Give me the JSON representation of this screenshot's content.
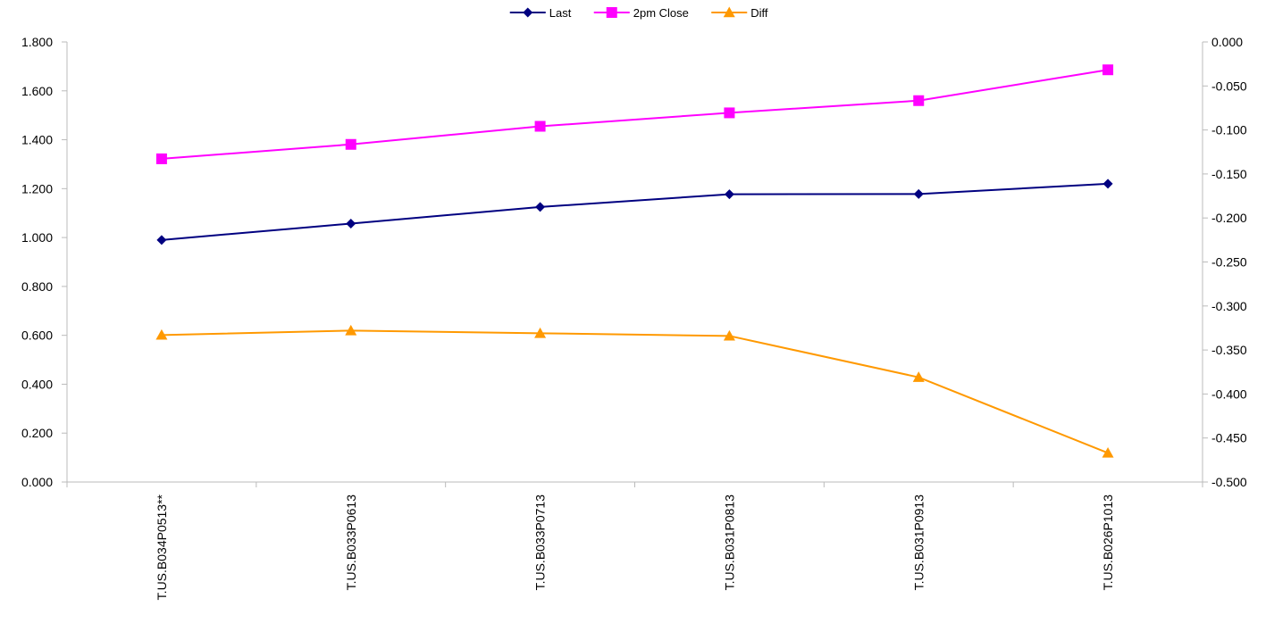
{
  "chart_data": {
    "type": "line",
    "categories": [
      "T.US.B034P0513**",
      "T.US.B033P0613",
      "T.US.B033P0713",
      "T.US.B031P0813",
      "T.US.B031P0913",
      "T.US.B026P1013"
    ],
    "series": [
      {
        "name": "Last",
        "axis": "left",
        "color": "#000080",
        "marker": "diamond",
        "values": [
          0.99,
          1.057,
          1.125,
          1.177,
          1.178,
          1.22
        ]
      },
      {
        "name": "2pm Close",
        "axis": "left",
        "color": "#FF00FF",
        "marker": "square",
        "values": [
          1.322,
          1.381,
          1.455,
          1.51,
          1.56,
          1.686
        ]
      },
      {
        "name": "Diff",
        "axis": "right",
        "color": "#FF9900",
        "marker": "triangle",
        "values": [
          -0.333,
          -0.328,
          -0.331,
          -0.334,
          -0.381,
          -0.467
        ]
      }
    ],
    "y_left": {
      "min": 0,
      "max": 1.8,
      "step": 0.2,
      "tick_labels": [
        "0.000",
        "0.200",
        "0.400",
        "0.600",
        "0.800",
        "1.000",
        "1.200",
        "1.400",
        "1.600",
        "1.800"
      ]
    },
    "y_right": {
      "min": -0.5,
      "max": 0,
      "step": 0.05,
      "tick_labels": [
        "-0.500",
        "-0.450",
        "-0.400",
        "-0.350",
        "-0.300",
        "-0.250",
        "-0.200",
        "-0.150",
        "-0.100",
        "-0.050",
        "0.000"
      ]
    },
    "grid": false,
    "legend": {
      "position": "top-center",
      "items": [
        "Last",
        "2pm Close",
        "Diff"
      ]
    },
    "title": "",
    "xlabel": "",
    "ylabel": ""
  }
}
